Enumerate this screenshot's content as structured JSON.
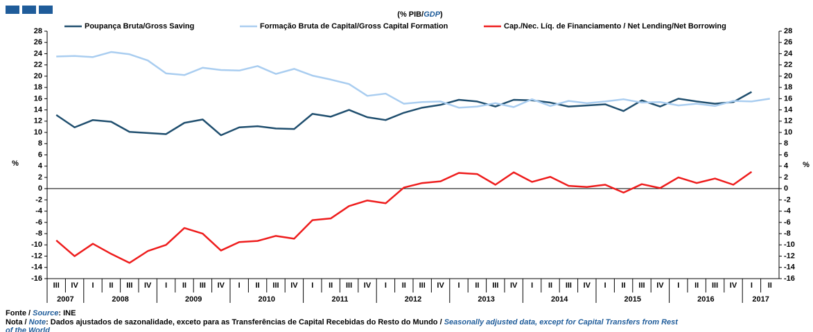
{
  "chart_data": {
    "type": "line",
    "title": "(% PIB/",
    "title_highlight": "GDP",
    "title_end": ")",
    "ylabel": "%",
    "y2label": "%",
    "categories": [
      "III",
      "IV",
      "I",
      "II",
      "III",
      "IV",
      "I",
      "II",
      "III",
      "IV",
      "I",
      "II",
      "III",
      "IV",
      "I",
      "II",
      "III",
      "IV",
      "I",
      "II",
      "III",
      "IV",
      "I",
      "II",
      "III",
      "IV",
      "I",
      "II",
      "III",
      "IV",
      "I",
      "II",
      "III",
      "IV",
      "I",
      "II",
      "III",
      "IV",
      "I",
      "II"
    ],
    "years": [
      "2007",
      "2008",
      "2009",
      "2010",
      "2011",
      "2012",
      "2013",
      "2014",
      "2015",
      "2016",
      "2017"
    ],
    "series": [
      {
        "name": "Poupança Bruta/Gross Saving",
        "color": "#1f4e6e",
        "values": [
          13.1,
          10.9,
          12.2,
          11.9,
          10.1,
          9.9,
          9.7,
          11.7,
          12.3,
          9.5,
          10.9,
          11.1,
          10.7,
          10.6,
          13.3,
          12.8,
          14.0,
          12.7,
          12.2,
          13.5,
          14.4,
          14.9,
          15.8,
          15.5,
          14.6,
          15.8,
          15.7,
          15.3,
          14.6,
          14.8,
          15.0,
          13.8,
          15.7,
          14.6,
          16.0,
          15.5,
          15.1,
          15.4,
          17.2,
          null
        ]
      },
      {
        "name": "Formação Bruta de Capital/Gross Capital Formation",
        "color": "#a9cdf0",
        "values": [
          23.5,
          23.6,
          23.4,
          24.3,
          23.9,
          22.8,
          20.5,
          20.2,
          21.5,
          21.1,
          21.0,
          21.8,
          20.4,
          21.3,
          20.1,
          19.4,
          18.6,
          16.5,
          16.9,
          15.1,
          15.4,
          15.5,
          14.4,
          14.6,
          15.2,
          14.5,
          15.9,
          14.7,
          15.6,
          15.2,
          15.5,
          15.9,
          15.3,
          15.4,
          14.8,
          15.1,
          14.7,
          15.6,
          15.5,
          16.0
        ]
      },
      {
        "name": "Cap./Nec. Líq. de Financiamento / Net Lending/Net Borrowing",
        "color": "#ee1c1c",
        "values": [
          -9.2,
          -12.0,
          -9.8,
          -11.6,
          -13.2,
          -11.1,
          -10.0,
          -7.0,
          -8.0,
          -11.0,
          -9.5,
          -9.3,
          -8.4,
          -8.9,
          -5.6,
          -5.3,
          -3.1,
          -2.1,
          -2.6,
          0.2,
          1.0,
          1.3,
          2.8,
          2.6,
          0.7,
          2.9,
          1.2,
          2.1,
          0.5,
          0.3,
          0.7,
          -0.7,
          0.8,
          0.1,
          2.0,
          1.0,
          1.8,
          0.7,
          3.0,
          null
        ]
      }
    ],
    "ylim": [
      -16,
      28
    ],
    "yticks": [
      -16,
      -14,
      -12,
      -10,
      -8,
      -6,
      -4,
      -2,
      0,
      2,
      4,
      6,
      8,
      10,
      12,
      14,
      16,
      18,
      20,
      22,
      24,
      26,
      28
    ],
    "y2lim": [
      -16,
      28
    ],
    "y2ticks": [
      -16,
      -14,
      -12,
      -10,
      -8,
      -6,
      -4,
      -2,
      0,
      2,
      4,
      6,
      8,
      10,
      12,
      14,
      16,
      18,
      20,
      22,
      24,
      26,
      28
    ],
    "legend": "top",
    "grid": false
  },
  "footer": {
    "source_label_pt": "Fonte / ",
    "source_label_en": "Source",
    "source_text": ":  INE",
    "note_label_pt": "Nota / ",
    "note_label_en": "Note",
    "note_pt": ": Dados ajustados de sazonalidade, exceto para as Transferências de Capital Recebidas do Resto do Mundo / ",
    "note_en": [
      "Seasonally adjusted data, except for Capital Transfers from Rest",
      "of the World"
    ]
  }
}
